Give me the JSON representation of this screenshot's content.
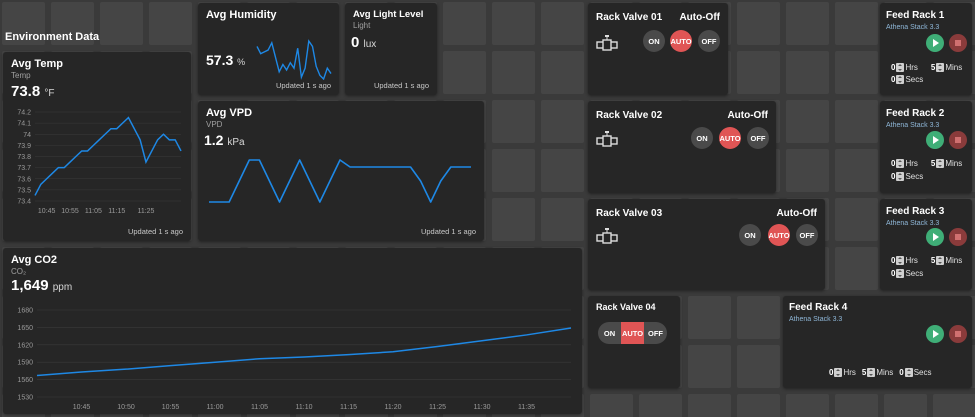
{
  "section_title": "Environment Data",
  "temp": {
    "title": "Avg Temp",
    "subtitle": "Temp",
    "value": "73.8",
    "unit": "°F",
    "updated": "Updated 1 s ago"
  },
  "humidity": {
    "title": "Avg Humidity",
    "value": "57.3",
    "unit": "%",
    "updated": "Updated 1 s ago"
  },
  "light": {
    "title": "Avg Light Level",
    "subtitle": "Light",
    "value": "0",
    "unit": "lux",
    "updated": "Updated 1 s ago"
  },
  "vpd": {
    "title": "Avg VPD",
    "subtitle": "VPD",
    "value": "1.2",
    "unit": "kPa",
    "updated": "Updated 1 s ago"
  },
  "co2": {
    "title": "Avg CO2",
    "subtitle": "CO₂",
    "value": "1,649",
    "unit": "ppm"
  },
  "valves": [
    {
      "title": "Rack Valve 01",
      "mode": "Auto-Off",
      "on": "ON",
      "auto": "AUTO",
      "off": "OFF"
    },
    {
      "title": "Rack Valve 02",
      "mode": "Auto-Off",
      "on": "ON",
      "auto": "AUTO",
      "off": "OFF"
    },
    {
      "title": "Rack Valve 03",
      "mode": "Auto-Off",
      "on": "ON",
      "auto": "AUTO",
      "off": "OFF"
    },
    {
      "title": "Rack Valve 04",
      "on": "ON",
      "auto": "AUTO",
      "off": "OFF"
    }
  ],
  "feeds": [
    {
      "title": "Feed Rack 1",
      "subtitle": "Athena Stack 3.3",
      "hrs": "0",
      "hrs_label": "Hrs",
      "mins": "5",
      "mins_label": "Mins",
      "secs": "0",
      "secs_label": "Secs"
    },
    {
      "title": "Feed Rack 2",
      "subtitle": "Athena Stack 3.3",
      "hrs": "0",
      "hrs_label": "Hrs",
      "mins": "5",
      "mins_label": "Mins",
      "secs": "0",
      "secs_label": "Secs"
    },
    {
      "title": "Feed Rack 3",
      "subtitle": "Athena Stack 3.3",
      "hrs": "0",
      "hrs_label": "Hrs",
      "mins": "5",
      "mins_label": "Mins",
      "secs": "0",
      "secs_label": "Secs"
    },
    {
      "title": "Feed Rack 4",
      "subtitle": "Athena Stack 3.3",
      "hrs": "0",
      "hrs_label": "Hrs",
      "mins": "5",
      "mins_label": "Mins",
      "secs": "0",
      "secs_label": "Secs"
    }
  ],
  "colors": {
    "line": "#1e88e5",
    "active": "#e05555",
    "play": "#3fae77",
    "stop": "#8a3b3b"
  },
  "icons": {
    "play": "play-icon",
    "stop": "stop-icon",
    "valve": "valve-icon"
  },
  "chart_data": [
    {
      "type": "line",
      "title": "Avg Temp",
      "x": [
        "10:40",
        "10:43",
        "10:45",
        "10:48",
        "10:50",
        "10:53",
        "10:55",
        "10:58",
        "11:00",
        "11:03",
        "11:05",
        "11:08",
        "11:10",
        "11:13",
        "11:15",
        "11:17",
        "11:20",
        "11:22",
        "11:24",
        "11:25",
        "11:27",
        "11:28",
        "11:30",
        "11:32",
        "11:33",
        "11:35"
      ],
      "y": [
        73.45,
        73.55,
        73.6,
        73.65,
        73.7,
        73.7,
        73.75,
        73.8,
        73.85,
        73.85,
        73.9,
        73.95,
        74.0,
        74.05,
        74.05,
        74.1,
        74.15,
        74.05,
        73.95,
        73.75,
        73.85,
        73.95,
        74.0,
        73.95,
        73.95,
        73.85
      ],
      "xticks": [
        "10:45",
        "10:55",
        "11:05",
        "11:15",
        "11:25"
      ],
      "yticks": [
        "74.2",
        "74.1",
        "74",
        "73.9",
        "73.8",
        "73.7",
        "73.6",
        "73.5",
        "73.4"
      ],
      "ylim": [
        73.4,
        74.2
      ]
    },
    {
      "type": "line",
      "title": "Avg Humidity",
      "x": [
        0,
        1,
        2,
        3,
        4,
        5,
        6,
        7,
        8,
        9,
        10,
        11,
        12,
        13,
        14,
        15,
        16,
        17,
        18,
        19,
        20
      ],
      "y": [
        58.2,
        57.8,
        57.9,
        58.0,
        58.4,
        57.6,
        56.8,
        57.2,
        56.9,
        57.3,
        57.0,
        58.1,
        56.5,
        57.0,
        58.5,
        58.2,
        57.1,
        56.6,
        56.4,
        57.0,
        56.7
      ]
    },
    {
      "type": "line",
      "title": "Avg VPD",
      "x": [
        0,
        1,
        2,
        3,
        4,
        5,
        6,
        7,
        8,
        9,
        10,
        11,
        12,
        13,
        14,
        15,
        16,
        17,
        18,
        19,
        20,
        21,
        22,
        23,
        24,
        25,
        26
      ],
      "y": [
        0.95,
        0.95,
        0.95,
        1.1,
        1.25,
        1.25,
        1.1,
        0.95,
        1.1,
        1.25,
        1.1,
        0.95,
        1.1,
        1.25,
        1.2,
        1.2,
        1.2,
        1.2,
        1.2,
        1.2,
        1.2,
        1.1,
        0.95,
        1.1,
        1.2,
        1.2,
        1.2
      ]
    },
    {
      "type": "line",
      "title": "Avg CO2",
      "x": [
        "10:40",
        "10:45",
        "10:50",
        "10:55",
        "11:00",
        "11:05",
        "11:10",
        "11:15",
        "11:20",
        "11:25",
        "11:30",
        "11:35",
        "11:37"
      ],
      "y": [
        1567,
        1573,
        1578,
        1584,
        1590,
        1596,
        1599,
        1603,
        1608,
        1617,
        1627,
        1637,
        1649
      ],
      "xticks": [
        "10:45",
        "10:50",
        "10:55",
        "11:00",
        "11:05",
        "11:10",
        "11:15",
        "11:20",
        "11:25",
        "11:30",
        "11:35"
      ],
      "yticks": [
        "1680",
        "1650",
        "1620",
        "1590",
        "1560",
        "1530"
      ],
      "ylim": [
        1530,
        1680
      ]
    }
  ]
}
